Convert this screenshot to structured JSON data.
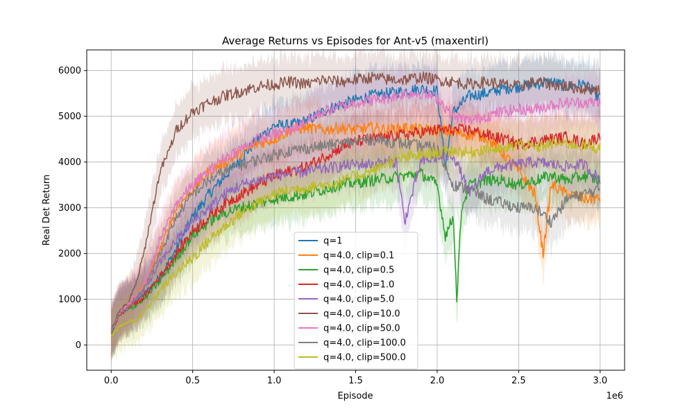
{
  "chart_data": {
    "type": "line",
    "title": "Average Returns vs Episodes for Ant-v5 (maxentirl)",
    "xlabel": "Episode",
    "ylabel": "Real Det Return",
    "x_offset_label": "1e6",
    "xlim": [
      -0.15,
      3.15
    ],
    "ylim": [
      -550,
      6450
    ],
    "xticks": [
      0.0,
      0.5,
      1.0,
      1.5,
      2.0,
      2.5,
      3.0
    ],
    "xtick_labels": [
      "0.0",
      "0.5",
      "1.0",
      "1.5",
      "2.0",
      "2.5",
      "3.0"
    ],
    "yticks": [
      0,
      1000,
      2000,
      3000,
      4000,
      5000,
      6000
    ],
    "ytick_labels": [
      "0",
      "1000",
      "2000",
      "3000",
      "4000",
      "5000",
      "6000"
    ],
    "grid": true,
    "legend_position": "lower-center",
    "shaded_band": "variability",
    "series": [
      {
        "name": "q=1",
        "color": "#1f77b4",
        "x": [
          0,
          0.05,
          0.1,
          0.2,
          0.3,
          0.4,
          0.5,
          0.6,
          0.7,
          0.8,
          0.9,
          1.0,
          1.1,
          1.2,
          1.3,
          1.4,
          1.5,
          1.6,
          1.7,
          1.8,
          1.9,
          2.0,
          2.05,
          2.1,
          2.2,
          2.3,
          2.4,
          2.5,
          2.6,
          2.7,
          2.8,
          2.9,
          3.0
        ],
        "y": [
          250,
          700,
          820,
          1100,
          1500,
          2100,
          2800,
          3300,
          3700,
          4100,
          4500,
          4800,
          4800,
          4900,
          5100,
          5250,
          5350,
          5450,
          5500,
          5550,
          5600,
          5550,
          3900,
          5100,
          5450,
          5500,
          5600,
          5650,
          5700,
          5750,
          5650,
          5700,
          5400
        ]
      },
      {
        "name": "q=4.0, clip=0.1",
        "color": "#ff7f0e",
        "x": [
          0,
          0.05,
          0.1,
          0.2,
          0.3,
          0.4,
          0.5,
          0.6,
          0.7,
          0.8,
          0.9,
          1.0,
          1.1,
          1.2,
          1.3,
          1.4,
          1.5,
          1.6,
          1.7,
          1.8,
          1.9,
          2.0,
          2.1,
          2.2,
          2.3,
          2.4,
          2.5,
          2.6,
          2.65,
          2.7,
          2.8,
          2.9,
          3.0
        ],
        "y": [
          300,
          700,
          850,
          1300,
          2100,
          3000,
          3400,
          3800,
          4000,
          4200,
          4400,
          4500,
          4700,
          4750,
          4700,
          4750,
          4700,
          4750,
          4700,
          4750,
          4700,
          4700,
          4650,
          4600,
          4550,
          4200,
          3800,
          3300,
          2000,
          3500,
          3300,
          3200,
          3200
        ]
      },
      {
        "name": "q=4.0, clip=0.5",
        "color": "#2ca02c",
        "x": [
          0,
          0.05,
          0.1,
          0.2,
          0.3,
          0.4,
          0.5,
          0.6,
          0.7,
          0.8,
          0.9,
          1.0,
          1.1,
          1.2,
          1.3,
          1.4,
          1.5,
          1.6,
          1.7,
          1.8,
          1.9,
          2.0,
          2.05,
          2.1,
          2.12,
          2.15,
          2.2,
          2.3,
          2.4,
          2.5,
          2.6,
          2.7,
          2.8,
          2.9,
          3.0
        ],
        "y": [
          250,
          650,
          750,
          1000,
          1400,
          1900,
          2400,
          2700,
          2900,
          3000,
          3100,
          3200,
          3250,
          3300,
          3400,
          3500,
          3550,
          3600,
          3650,
          3700,
          3750,
          3500,
          2400,
          2800,
          1000,
          3000,
          3500,
          3600,
          3600,
          3500,
          3600,
          3700,
          3600,
          3700,
          3600
        ]
      },
      {
        "name": "q=4.0, clip=1.0",
        "color": "#d62728",
        "x": [
          0,
          0.05,
          0.1,
          0.2,
          0.3,
          0.4,
          0.5,
          0.6,
          0.7,
          0.8,
          0.9,
          1.0,
          1.1,
          1.2,
          1.3,
          1.4,
          1.5,
          1.6,
          1.7,
          1.8,
          1.9,
          2.0,
          2.1,
          2.2,
          2.3,
          2.4,
          2.5,
          2.6,
          2.7,
          2.8,
          2.9,
          3.0
        ],
        "y": [
          280,
          650,
          800,
          1050,
          1500,
          2000,
          2500,
          2800,
          3100,
          3300,
          3500,
          3700,
          3800,
          3900,
          4100,
          4300,
          4450,
          4500,
          4550,
          4600,
          4650,
          4700,
          4700,
          4700,
          4600,
          4500,
          4400,
          4450,
          4500,
          4550,
          4400,
          4550
        ]
      },
      {
        "name": "q=4.0, clip=5.0",
        "color": "#9467bd",
        "x": [
          0,
          0.05,
          0.1,
          0.2,
          0.3,
          0.4,
          0.5,
          0.6,
          0.7,
          0.8,
          0.9,
          1.0,
          1.1,
          1.2,
          1.3,
          1.4,
          1.5,
          1.6,
          1.7,
          1.75,
          1.8,
          1.9,
          2.0,
          2.1,
          2.2,
          2.3,
          2.4,
          2.5,
          2.6,
          2.7,
          2.8,
          2.9,
          3.0
        ],
        "y": [
          300,
          700,
          850,
          1200,
          1800,
          2300,
          2700,
          3000,
          3300,
          3500,
          3600,
          3700,
          3750,
          3800,
          3850,
          3900,
          3950,
          3950,
          4000,
          4000,
          2700,
          4000,
          4100,
          4150,
          3300,
          3800,
          3900,
          3950,
          4000,
          3950,
          3900,
          3950,
          3600
        ]
      },
      {
        "name": "q=4.0, clip=10.0",
        "color": "#8c564b",
        "x": [
          0,
          0.05,
          0.1,
          0.15,
          0.2,
          0.25,
          0.3,
          0.35,
          0.4,
          0.45,
          0.5,
          0.6,
          0.7,
          0.8,
          0.9,
          1.0,
          1.1,
          1.2,
          1.3,
          1.4,
          1.5,
          1.6,
          1.7,
          1.8,
          1.9,
          2.0,
          2.1,
          2.2,
          2.3,
          2.4,
          2.5,
          2.6,
          2.7,
          2.8,
          2.9,
          3.0
        ],
        "y": [
          350,
          750,
          900,
          1300,
          2000,
          2900,
          3800,
          4200,
          4700,
          4900,
          5100,
          5300,
          5450,
          5550,
          5650,
          5700,
          5750,
          5700,
          5800,
          5750,
          5800,
          5850,
          5800,
          5800,
          5850,
          5800,
          5750,
          5700,
          5750,
          5700,
          5650,
          5750,
          5700,
          5650,
          5600,
          5600
        ]
      },
      {
        "name": "q=4.0, clip=50.0",
        "color": "#e377c2",
        "x": [
          0,
          0.05,
          0.1,
          0.2,
          0.3,
          0.4,
          0.5,
          0.6,
          0.7,
          0.8,
          0.9,
          1.0,
          1.1,
          1.2,
          1.3,
          1.4,
          1.5,
          1.6,
          1.7,
          1.8,
          1.9,
          2.0,
          2.1,
          2.2,
          2.3,
          2.4,
          2.5,
          2.6,
          2.7,
          2.8,
          2.9,
          3.0
        ],
        "y": [
          300,
          700,
          850,
          1300,
          2300,
          3100,
          3500,
          3800,
          4100,
          4300,
          4500,
          4600,
          4700,
          4900,
          5100,
          5200,
          5300,
          5350,
          5400,
          5500,
          5500,
          5400,
          5000,
          4900,
          5000,
          5100,
          5150,
          5150,
          5250,
          5300,
          5300,
          5300
        ]
      },
      {
        "name": "q=4.0, clip=100.0",
        "color": "#7f7f7f",
        "x": [
          0,
          0.05,
          0.1,
          0.2,
          0.3,
          0.4,
          0.5,
          0.6,
          0.7,
          0.8,
          0.9,
          1.0,
          1.1,
          1.2,
          1.3,
          1.4,
          1.5,
          1.6,
          1.7,
          1.8,
          1.9,
          2.0,
          2.1,
          2.2,
          2.3,
          2.4,
          2.5,
          2.6,
          2.7,
          2.8,
          2.9,
          3.0
        ],
        "y": [
          280,
          700,
          800,
          1200,
          2000,
          2800,
          3300,
          3600,
          3800,
          3950,
          4050,
          4150,
          4250,
          4300,
          4350,
          4400,
          4450,
          4500,
          4450,
          4400,
          4350,
          4300,
          3500,
          3400,
          3200,
          3100,
          3000,
          3000,
          2700,
          3200,
          3300,
          3400
        ]
      },
      {
        "name": "q=4.0, clip=500.0",
        "color": "#bcbd22",
        "x": [
          0,
          0.05,
          0.1,
          0.15,
          0.2,
          0.3,
          0.4,
          0.5,
          0.6,
          0.7,
          0.8,
          0.9,
          1.0,
          1.1,
          1.2,
          1.3,
          1.4,
          1.5,
          1.6,
          1.7,
          1.8,
          1.9,
          2.0,
          2.1,
          2.2,
          2.3,
          2.4,
          2.5,
          2.6,
          2.7,
          2.8,
          2.9,
          3.0
        ],
        "y": [
          200,
          400,
          500,
          550,
          700,
          1200,
          1600,
          1900,
          2300,
          2600,
          2900,
          3100,
          3300,
          3400,
          3450,
          3500,
          3550,
          3700,
          3800,
          4000,
          4100,
          4150,
          4200,
          4250,
          4200,
          4300,
          4250,
          4400,
          4300,
          4400,
          4400,
          4350,
          4300
        ]
      }
    ]
  }
}
